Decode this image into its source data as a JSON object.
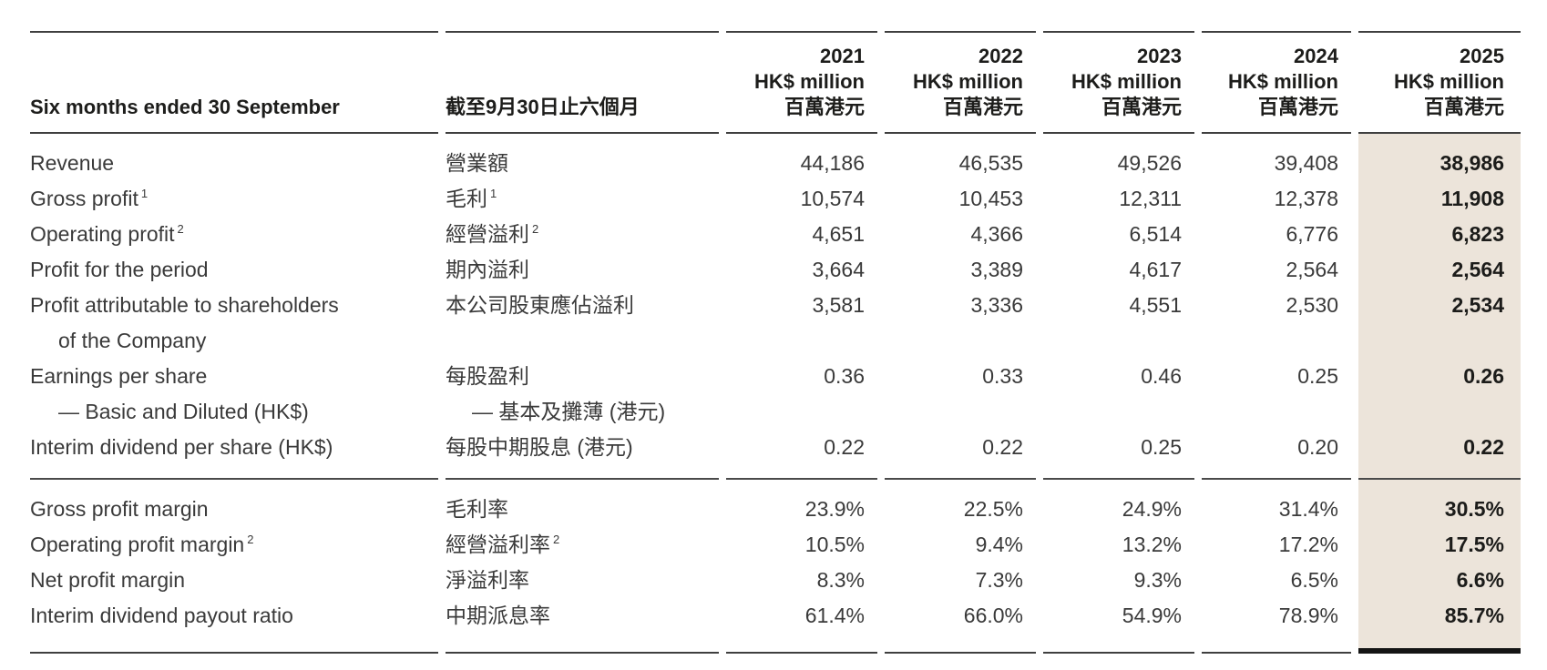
{
  "meta": {
    "highlight_color": "#ece4da",
    "rule_color": "#3f3f3f"
  },
  "header": {
    "period_en": "Six months ended 30 September",
    "period_zh": "截至9月30日止六個月",
    "columns": [
      {
        "year": "2021",
        "unit_en": "HK$ million",
        "unit_zh": "百萬港元"
      },
      {
        "year": "2022",
        "unit_en": "HK$ million",
        "unit_zh": "百萬港元"
      },
      {
        "year": "2023",
        "unit_en": "HK$ million",
        "unit_zh": "百萬港元"
      },
      {
        "year": "2024",
        "unit_en": "HK$ million",
        "unit_zh": "百萬港元"
      },
      {
        "year": "2025",
        "unit_en": "HK$ million",
        "unit_zh": "百萬港元"
      }
    ]
  },
  "financial_rows": [
    {
      "en": "Revenue",
      "zh": "營業額",
      "v": [
        "44,186",
        "46,535",
        "49,526",
        "39,408",
        "38,986"
      ]
    },
    {
      "en": "Gross profit",
      "sup_en": "1",
      "zh": "毛利",
      "sup_zh": "1",
      "v": [
        "10,574",
        "10,453",
        "12,311",
        "12,378",
        "11,908"
      ]
    },
    {
      "en": "Operating profit",
      "sup_en": "2",
      "zh": "經營溢利",
      "sup_zh": "2",
      "v": [
        "4,651",
        "4,366",
        "6,514",
        "6,776",
        "6,823"
      ]
    },
    {
      "en": "Profit for the period",
      "zh": "期內溢利",
      "v": [
        "3,664",
        "3,389",
        "4,617",
        "2,564",
        "2,564"
      ]
    },
    {
      "en": "Profit attributable to shareholders",
      "en2": "of the Company",
      "zh": "本公司股東應佔溢利",
      "v": [
        "3,581",
        "3,336",
        "4,551",
        "2,530",
        "2,534"
      ]
    },
    {
      "en": "Earnings per share",
      "en2": "— Basic and Diluted (HK$)",
      "zh": "每股盈利",
      "zh2": "— 基本及攤薄 (港元)",
      "v": [
        "0.36",
        "0.33",
        "0.46",
        "0.25",
        "0.26"
      ]
    },
    {
      "en": "Interim dividend per share (HK$)",
      "zh": "每股中期股息 (港元)",
      "v": [
        "0.22",
        "0.22",
        "0.25",
        "0.20",
        "0.22"
      ]
    }
  ],
  "ratio_rows": [
    {
      "en": "Gross profit margin",
      "zh": "毛利率",
      "v": [
        "23.9%",
        "22.5%",
        "24.9%",
        "31.4%",
        "30.5%"
      ]
    },
    {
      "en": "Operating profit margin",
      "sup_en": "2",
      "zh": "經營溢利率",
      "sup_zh": "2",
      "v": [
        "10.5%",
        "9.4%",
        "13.2%",
        "17.2%",
        "17.5%"
      ]
    },
    {
      "en": "Net profit margin",
      "zh": "淨溢利率",
      "v": [
        "8.3%",
        "7.3%",
        "9.3%",
        "6.5%",
        "6.6%"
      ]
    },
    {
      "en": "Interim dividend payout ratio",
      "zh": "中期派息率",
      "v": [
        "61.4%",
        "66.0%",
        "54.9%",
        "78.9%",
        "85.7%"
      ]
    }
  ]
}
